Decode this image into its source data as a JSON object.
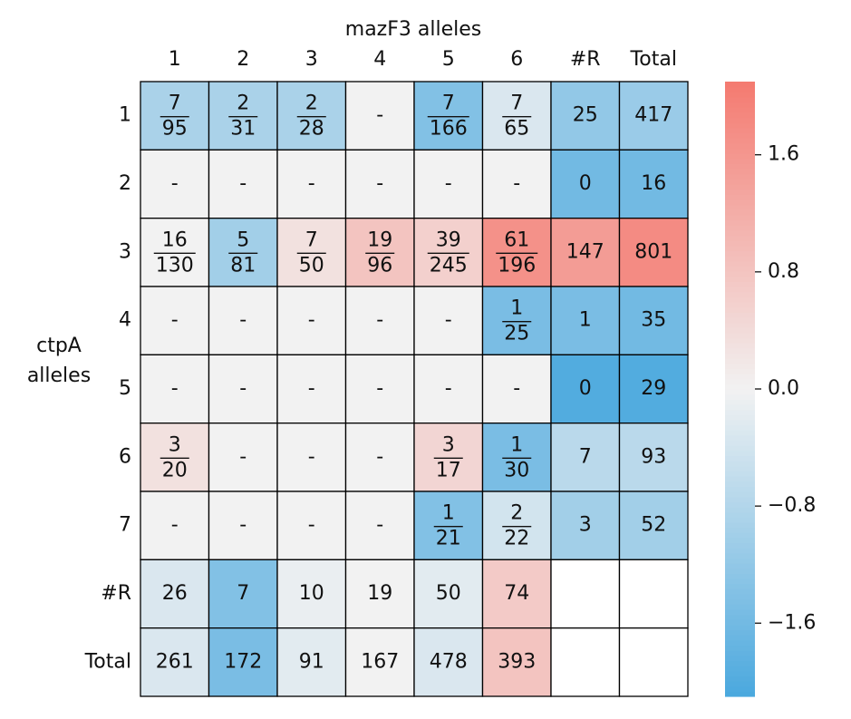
{
  "chart_data": {
    "type": "heatmap",
    "x_label": "mazF3 alleles",
    "y_label": [
      "ctpA",
      "alleles"
    ],
    "x_categories": [
      "1",
      "2",
      "3",
      "4",
      "5",
      "6",
      "#R",
      "Total"
    ],
    "y_categories": [
      "1",
      "2",
      "3",
      "4",
      "5",
      "6",
      "7",
      "#R",
      "Total"
    ],
    "cell_labels": [
      [
        [
          7,
          95
        ],
        [
          2,
          31
        ],
        [
          2,
          28
        ],
        "-",
        [
          7,
          166
        ],
        [
          7,
          65
        ],
        25,
        417
      ],
      [
        "-",
        "-",
        "-",
        "-",
        "-",
        "-",
        0,
        16
      ],
      [
        [
          16,
          130
        ],
        [
          5,
          81
        ],
        [
          7,
          50
        ],
        [
          19,
          96
        ],
        [
          39,
          245
        ],
        [
          61,
          196
        ],
        147,
        801
      ],
      [
        "-",
        "-",
        "-",
        "-",
        "-",
        [
          1,
          25
        ],
        1,
        35
      ],
      [
        "-",
        "-",
        "-",
        "-",
        "-",
        "-",
        0,
        29
      ],
      [
        [
          3,
          20
        ],
        "-",
        "-",
        "-",
        [
          3,
          17
        ],
        [
          1,
          30
        ],
        7,
        93
      ],
      [
        "-",
        "-",
        "-",
        "-",
        [
          1,
          21
        ],
        [
          2,
          22
        ],
        3,
        52
      ],
      [
        26,
        7,
        10,
        19,
        50,
        74,
        null,
        null
      ],
      [
        261,
        172,
        91,
        167,
        478,
        393,
        null,
        null
      ]
    ],
    "values": [
      [
        -0.9,
        -0.9,
        -0.9,
        0,
        -1.4,
        -0.3,
        -1.2,
        -1.1
      ],
      [
        0,
        0,
        0,
        0,
        0,
        0,
        -1.6,
        -1.6
      ],
      [
        0,
        -1.0,
        0.3,
        0.8,
        0.6,
        1.7,
        1.5,
        1.8
      ],
      [
        0,
        0,
        0,
        0,
        0,
        -1.5,
        -1.5,
        -1.6
      ],
      [
        0,
        0,
        0,
        0,
        0,
        0,
        -2.0,
        -2.0
      ],
      [
        0.3,
        0,
        0,
        0,
        0.5,
        -1.5,
        -0.7,
        -0.7
      ],
      [
        0,
        0,
        0,
        0,
        -1.4,
        -0.4,
        -1.0,
        -1.0
      ],
      [
        -0.3,
        -1.4,
        -0.1,
        0,
        -0.2,
        0.7,
        null,
        null
      ],
      [
        -0.3,
        -1.5,
        -0.2,
        0,
        -0.3,
        0.8,
        null,
        null
      ]
    ],
    "cmap": [
      "#4aa8de",
      "#f2f2f2",
      "#f47a70"
    ],
    "clim": [
      -2.1,
      2.1
    ],
    "cticks": [
      1.6,
      0.8,
      {
        "value": 0,
        "label": "0.0"
      },
      {
        "value": -0.8,
        "label": "−0.8"
      },
      {
        "value": -1.6,
        "label": "−1.6"
      }
    ]
  }
}
